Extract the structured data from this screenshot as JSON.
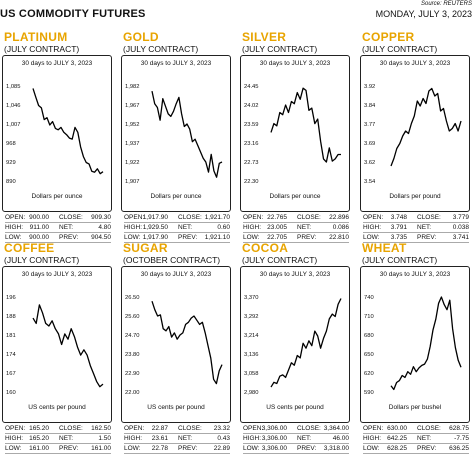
{
  "header": {
    "title": "US COMMODITY FUTURES",
    "source": "Source: REUTERS",
    "date": "MONDAY, JULY 3, 2023"
  },
  "panels": [
    {
      "name": "PLATINUM",
      "contract": "(JULY CONTRACT)",
      "subtitle": "30 days to JULY 3, 2023",
      "unit": "Dollars per ounce",
      "stats": [
        {
          "l1": "OPEN:",
          "v1": "900.00",
          "l2": "CLOSE:",
          "v2": "909.30"
        },
        {
          "l1": "HIGH:",
          "v1": "911.00",
          "l2": "NET:",
          "v2": "4.80"
        },
        {
          "l1": "LOW:",
          "v1": "900.00",
          "l2": "PREV:",
          "v2": "904.50"
        }
      ]
    },
    {
      "name": "GOLD",
      "contract": "(JULY CONTRACT)",
      "subtitle": "30 days to JULY 3, 2023",
      "unit": "Dollars per ounce",
      "stats": [
        {
          "l1": "OPEN:",
          "v1": "1,917.90",
          "l2": "CLOSE:",
          "v2": "1,921.70"
        },
        {
          "l1": "HIGH:",
          "v1": "1,929.50",
          "l2": "NET:",
          "v2": "0.60"
        },
        {
          "l1": "LOW:",
          "v1": "1,917.90",
          "l2": "PREV:",
          "v2": "1,921.10"
        }
      ]
    },
    {
      "name": "SILVER",
      "contract": "(JULY CONTRACT)",
      "subtitle": "30 days to JULY 3, 2023",
      "unit": "Dollars per ounce",
      "stats": [
        {
          "l1": "OPEN:",
          "v1": "22.765",
          "l2": "CLOSE:",
          "v2": "22.896"
        },
        {
          "l1": "HIGH:",
          "v1": "23.005",
          "l2": "NET:",
          "v2": "0.086"
        },
        {
          "l1": "LOW:",
          "v1": "22.705",
          "l2": "PREV:",
          "v2": "22.810"
        }
      ]
    },
    {
      "name": "COPPER",
      "contract": "(JULY CONTRACT)",
      "subtitle": "30 days to JULY 3, 2023",
      "unit": "Dollars per pound",
      "stats": [
        {
          "l1": "OPEN:",
          "v1": "3.748",
          "l2": "CLOSE:",
          "v2": "3.779"
        },
        {
          "l1": "HIGH:",
          "v1": "3.791",
          "l2": "NET:",
          "v2": "0.038"
        },
        {
          "l1": "LOW:",
          "v1": "3.735",
          "l2": "PREV:",
          "v2": "3.741"
        }
      ]
    },
    {
      "name": "COFFEE",
      "contract": "(JULY CONTRACT)",
      "subtitle": "30 days to JULY 3, 2023",
      "unit": "US cents per pound",
      "stats": [
        {
          "l1": "OPEN:",
          "v1": "165.20",
          "l2": "CLOSE:",
          "v2": "162.50"
        },
        {
          "l1": "HIGH:",
          "v1": "165.20",
          "l2": "NET:",
          "v2": "1.50"
        },
        {
          "l1": "LOW:",
          "v1": "161.00",
          "l2": "PREV:",
          "v2": "161.00"
        }
      ]
    },
    {
      "name": "SUGAR",
      "contract": "(OCTOBER CONTRACT)",
      "subtitle": "30 days to JULY 3, 2023",
      "unit": "US cents per pound",
      "stats": [
        {
          "l1": "OPEN:",
          "v1": "22.87",
          "l2": "CLOSE:",
          "v2": "23.32"
        },
        {
          "l1": "HIGH:",
          "v1": "23.61",
          "l2": "NET:",
          "v2": "0.43"
        },
        {
          "l1": "LOW:",
          "v1": "22.78",
          "l2": "PREV:",
          "v2": "22.89"
        }
      ]
    },
    {
      "name": "COCOA",
      "contract": "(JULY CONTRACT)",
      "subtitle": "30 days to JULY 3, 2023",
      "unit": "US cents per pound",
      "stats": [
        {
          "l1": "OPEN:",
          "v1": "3,306.00",
          "l2": "CLOSE:",
          "v2": "3,364.00"
        },
        {
          "l1": "HIGH:",
          "v1": "3,306.00",
          "l2": "NET:",
          "v2": "46.00"
        },
        {
          "l1": "LOW:",
          "v1": "3,306.00",
          "l2": "PREV:",
          "v2": "3,318.00"
        }
      ]
    },
    {
      "name": "WHEAT",
      "contract": "(JULY CONTRACT)",
      "subtitle": "30 days to JULY 3, 2023",
      "unit": "Dollars per bushel",
      "stats": [
        {
          "l1": "OPEN:",
          "v1": "630.00",
          "l2": "CLOSE:",
          "v2": "628.75"
        },
        {
          "l1": "HIGH:",
          "v1": "642.25",
          "l2": "NET:",
          "v2": "-7.75"
        },
        {
          "l1": "LOW:",
          "v1": "628.25",
          "l2": "PREV:",
          "v2": "636.25"
        }
      ]
    }
  ],
  "chart_data": [
    {
      "type": "line",
      "title": "30 days to JULY 3, 2023",
      "ylabel": "Dollars per ounce",
      "yticks": [
        "1,085",
        "1,046",
        "1,007",
        "968",
        "929",
        "890"
      ],
      "ylim": [
        890,
        1085
      ],
      "values": [
        1080,
        1062,
        1045,
        1040,
        1016,
        1020,
        1005,
        1012,
        998,
        995,
        1000,
        990,
        985,
        978,
        976,
        1000,
        990,
        960,
        940,
        928,
        925,
        910,
        908,
        915,
        905,
        909
      ]
    },
    {
      "type": "line",
      "title": "30 days to JULY 3, 2023",
      "ylabel": "Dollars per ounce",
      "yticks": [
        "1,982",
        "1,967",
        "1,952",
        "1,937",
        "1,922",
        "1,907"
      ],
      "ylim": [
        1907,
        1982
      ],
      "values": [
        1978,
        1968,
        1965,
        1955,
        1972,
        1966,
        1960,
        1958,
        1962,
        1968,
        1973,
        1960,
        1950,
        1952,
        1948,
        1938,
        1940,
        1935,
        1930,
        1925,
        1922,
        1914,
        1928,
        1915,
        1910,
        1921,
        1922
      ]
    },
    {
      "type": "line",
      "title": "30 days to JULY 3, 2023",
      "ylabel": "Dollars per ounce",
      "yticks": [
        "24.45",
        "24.02",
        "23.59",
        "23.16",
        "22.73",
        "22.30"
      ],
      "ylim": [
        22.3,
        24.45
      ],
      "values": [
        23.4,
        23.6,
        23.55,
        23.85,
        23.8,
        24.02,
        23.85,
        24.1,
        24.05,
        24.3,
        24.15,
        24.4,
        24.35,
        23.9,
        23.95,
        23.6,
        23.7,
        23.2,
        22.8,
        22.73,
        23.05,
        22.75,
        22.8,
        22.9,
        22.9
      ]
    },
    {
      "type": "line",
      "title": "30 days to JULY 3, 2023",
      "ylabel": "Dollars per pound",
      "yticks": [
        "3.92",
        "3.84",
        "3.77",
        "3.69",
        "3.62",
        "3.54"
      ],
      "ylim": [
        3.54,
        3.92
      ],
      "values": [
        3.6,
        3.63,
        3.67,
        3.69,
        3.72,
        3.74,
        3.73,
        3.77,
        3.8,
        3.86,
        3.84,
        3.87,
        3.85,
        3.9,
        3.91,
        3.88,
        3.89,
        3.82,
        3.83,
        3.78,
        3.74,
        3.75,
        3.77,
        3.74,
        3.78
      ]
    },
    {
      "type": "line",
      "title": "30 days to JULY 3, 2023",
      "ylabel": "US cents per pound",
      "yticks": [
        "196",
        "188",
        "181",
        "174",
        "167",
        "160"
      ],
      "ylim": [
        160,
        196
      ],
      "values": [
        188,
        186,
        193,
        190,
        186,
        185,
        187,
        184,
        182,
        178,
        182,
        180,
        184,
        181,
        177,
        174,
        176,
        174,
        170,
        167,
        164,
        162,
        163
      ]
    },
    {
      "type": "line",
      "title": "30 days to JULY 3, 2023",
      "ylabel": "US cents per pound",
      "yticks": [
        "26.50",
        "25.60",
        "24.70",
        "23.80",
        "22.90",
        "22.00"
      ],
      "ylim": [
        22.0,
        26.5
      ],
      "values": [
        26.3,
        25.9,
        25.6,
        25.65,
        25.0,
        24.9,
        25.1,
        24.6,
        24.8,
        24.5,
        24.7,
        24.8,
        25.2,
        25.3,
        25.5,
        25.6,
        25.4,
        25.2,
        25.3,
        24.8,
        24.2,
        23.6,
        22.6,
        22.4,
        23.0,
        23.3
      ]
    },
    {
      "type": "line",
      "title": "30 days to JULY 3, 2023",
      "ylabel": "US cents per pound",
      "yticks": [
        "3,370",
        "3,292",
        "3,214",
        "3,136",
        "3,058",
        "2,980"
      ],
      "ylim": [
        2980,
        3370
      ],
      "values": [
        3000,
        3020,
        3015,
        3045,
        3050,
        3040,
        3070,
        3100,
        3090,
        3130,
        3120,
        3180,
        3160,
        3190,
        3170,
        3230,
        3210,
        3160,
        3200,
        3230,
        3280,
        3300,
        3290,
        3340,
        3364
      ]
    },
    {
      "type": "line",
      "title": "30 days to JULY 3, 2023",
      "ylabel": "Dollars per bushel",
      "yticks": [
        "740",
        "710",
        "680",
        "650",
        "620",
        "590"
      ],
      "ylim": [
        590,
        740
      ],
      "values": [
        600,
        594,
        605,
        608,
        616,
        613,
        622,
        618,
        630,
        622,
        628,
        632,
        634,
        642,
        662,
        688,
        705,
        730,
        740,
        728,
        720,
        735,
        690,
        660,
        640,
        629
      ]
    }
  ]
}
